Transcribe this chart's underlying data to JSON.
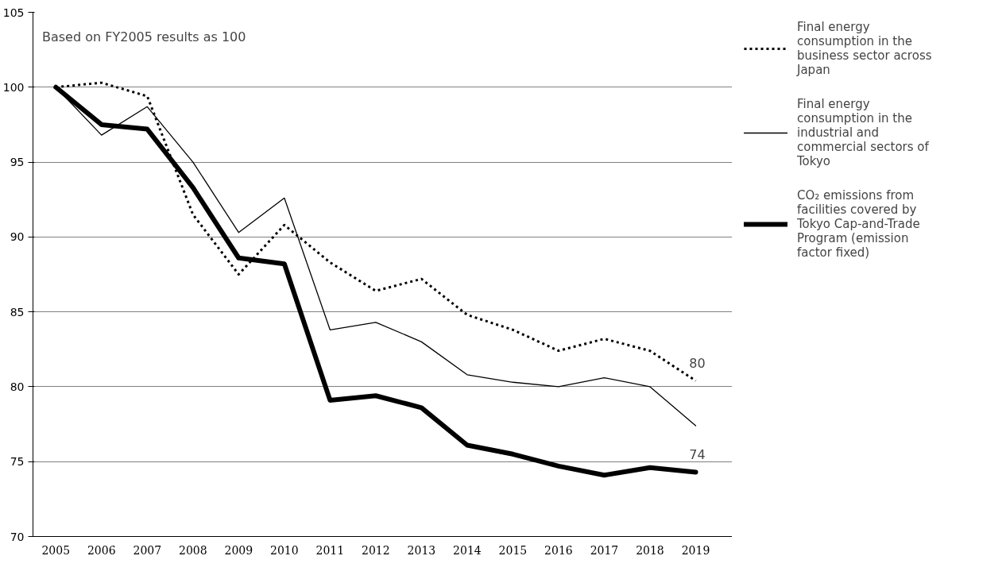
{
  "chart_data": {
    "type": "line",
    "categories": [
      "2005",
      "2006",
      "2007",
      "2008",
      "2009",
      "2010",
      "2011",
      "2012",
      "2013",
      "2014",
      "2015",
      "2016",
      "2017",
      "2018",
      "2019"
    ],
    "ylim": [
      70,
      105
    ],
    "yticks": [
      70,
      75,
      80,
      85,
      90,
      95,
      100,
      105
    ],
    "grid": "y",
    "legend": "right",
    "annotations": [
      "Based on FY2005 results as 100"
    ],
    "series": [
      {
        "name": "Final energy consumption in the business sector across Japan",
        "color": "#000000",
        "line_style": "dotted",
        "values": [
          100,
          100.3,
          99.4,
          91.5,
          87.5,
          90.8,
          88.3,
          86.4,
          87.2,
          84.8,
          83.8,
          82.4,
          83.2,
          82.4,
          80.4
        ],
        "value_labels": [
          null,
          null,
          null,
          null,
          null,
          null,
          null,
          null,
          null,
          null,
          null,
          null,
          null,
          null,
          "80"
        ]
      },
      {
        "name": "Final energy consumption in the industrial and commercial sectors of Tokyo",
        "color": "#000000",
        "line_style": "solid",
        "values": [
          100,
          96.8,
          98.7,
          95.0,
          90.3,
          92.6,
          83.8,
          84.3,
          83.0,
          80.8,
          80.3,
          80.0,
          80.6,
          80.0,
          77.4
        ]
      },
      {
        "name": "CO₂ emissions from facilities covered by Tokyo Cap-and-Trade Program (emission factor fixed)",
        "color": "#000000",
        "line_style": "solid",
        "values": [
          100,
          97.5,
          97.2,
          93.3,
          88.6,
          88.2,
          79.1,
          79.4,
          78.6,
          76.1,
          75.5,
          74.7,
          74.1,
          74.6,
          74.3
        ],
        "value_labels": [
          null,
          null,
          null,
          null,
          null,
          null,
          null,
          null,
          null,
          null,
          null,
          null,
          null,
          null,
          "74"
        ]
      }
    ]
  }
}
